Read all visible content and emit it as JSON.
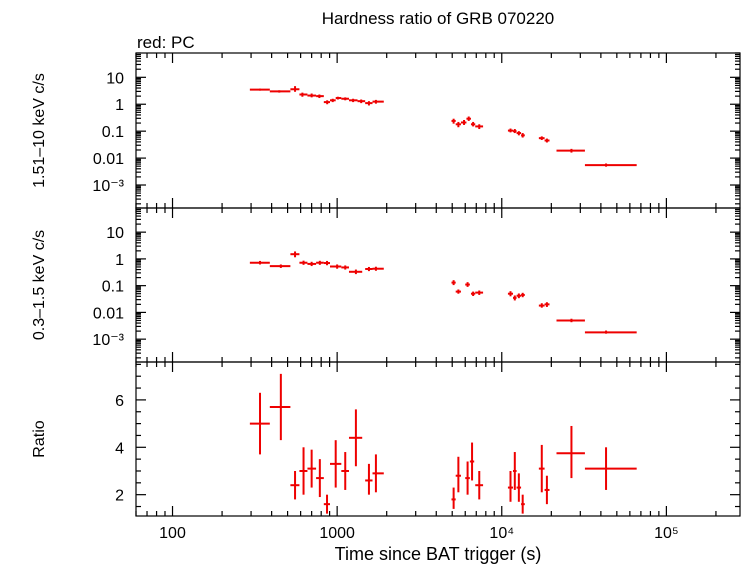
{
  "chart_data": {
    "type": "scatter",
    "title": "Hardness ratio of GRB 070220",
    "annotation": "red: PC",
    "xlabel": "Time since BAT trigger (s)",
    "x_scale": "log",
    "xlim": [
      60,
      280000
    ],
    "x_tick_labels": [
      "100",
      "1000",
      "10⁴",
      "10⁵"
    ],
    "x_tick_values": [
      100,
      1000,
      10000,
      100000
    ],
    "series_color": "#ee0000",
    "panels": [
      {
        "ylabel": "1.51–10 keV c/s",
        "y_scale": "log",
        "ylim": [
          0.00014,
          80
        ],
        "y_tick_labels": [
          "10",
          "1",
          "0.1",
          "0.01",
          "10⁻³"
        ],
        "y_tick_values": [
          10,
          1,
          0.1,
          0.01,
          0.001
        ],
        "points": [
          {
            "x": 340,
            "xlo": 295,
            "xhi": 390,
            "y": 3.5,
            "ylo": 3.2,
            "yhi": 3.8
          },
          {
            "x": 445,
            "xlo": 390,
            "xhi": 520,
            "y": 3.0,
            "ylo": 2.7,
            "yhi": 3.3
          },
          {
            "x": 555,
            "xlo": 520,
            "xhi": 590,
            "y": 3.6,
            "ylo": 2.9,
            "yhi": 4.7
          },
          {
            "x": 615,
            "xlo": 590,
            "xhi": 660,
            "y": 2.3,
            "ylo": 1.9,
            "yhi": 2.7
          },
          {
            "x": 700,
            "xlo": 660,
            "xhi": 745,
            "y": 2.1,
            "ylo": 1.8,
            "yhi": 2.5
          },
          {
            "x": 780,
            "xlo": 745,
            "xhi": 830,
            "y": 2.0,
            "ylo": 1.7,
            "yhi": 2.3
          },
          {
            "x": 870,
            "xlo": 830,
            "xhi": 905,
            "y": 1.2,
            "ylo": 1.0,
            "yhi": 1.4
          },
          {
            "x": 940,
            "xlo": 905,
            "xhi": 980,
            "y": 1.4,
            "ylo": 1.2,
            "yhi": 1.6
          },
          {
            "x": 1010,
            "xlo": 980,
            "xhi": 1060,
            "y": 1.7,
            "ylo": 1.5,
            "yhi": 1.9
          },
          {
            "x": 1120,
            "xlo": 1060,
            "xhi": 1180,
            "y": 1.6,
            "ylo": 1.4,
            "yhi": 1.8
          },
          {
            "x": 1250,
            "xlo": 1180,
            "xhi": 1330,
            "y": 1.4,
            "ylo": 1.2,
            "yhi": 1.6
          },
          {
            "x": 1400,
            "xlo": 1330,
            "xhi": 1480,
            "y": 1.3,
            "ylo": 1.1,
            "yhi": 1.5
          },
          {
            "x": 1560,
            "xlo": 1480,
            "xhi": 1640,
            "y": 1.1,
            "ylo": 0.9,
            "yhi": 1.3
          },
          {
            "x": 1720,
            "xlo": 1640,
            "xhi": 1920,
            "y": 1.25,
            "ylo": 1.05,
            "yhi": 1.45
          },
          {
            "x": 5100,
            "xlo": 4950,
            "xhi": 5250,
            "y": 0.24,
            "ylo": 0.19,
            "yhi": 0.29
          },
          {
            "x": 5450,
            "xlo": 5250,
            "xhi": 5650,
            "y": 0.18,
            "ylo": 0.14,
            "yhi": 0.22
          },
          {
            "x": 5900,
            "xlo": 5650,
            "xhi": 6100,
            "y": 0.21,
            "ylo": 0.17,
            "yhi": 0.26
          },
          {
            "x": 6300,
            "xlo": 6100,
            "xhi": 6500,
            "y": 0.29,
            "ylo": 0.24,
            "yhi": 0.35
          },
          {
            "x": 6700,
            "xlo": 6500,
            "xhi": 6900,
            "y": 0.18,
            "ylo": 0.15,
            "yhi": 0.22
          },
          {
            "x": 7300,
            "xlo": 6900,
            "xhi": 7700,
            "y": 0.15,
            "ylo": 0.12,
            "yhi": 0.18
          },
          {
            "x": 11300,
            "xlo": 10900,
            "xhi": 11700,
            "y": 0.105,
            "ylo": 0.09,
            "yhi": 0.125
          },
          {
            "x": 12000,
            "xlo": 11700,
            "xhi": 12300,
            "y": 0.1,
            "ylo": 0.085,
            "yhi": 0.12
          },
          {
            "x": 12700,
            "xlo": 12300,
            "xhi": 13100,
            "y": 0.085,
            "ylo": 0.07,
            "yhi": 0.1
          },
          {
            "x": 13400,
            "xlo": 13100,
            "xhi": 13800,
            "y": 0.07,
            "ylo": 0.058,
            "yhi": 0.085
          },
          {
            "x": 17500,
            "xlo": 16800,
            "xhi": 18200,
            "y": 0.055,
            "ylo": 0.047,
            "yhi": 0.064
          },
          {
            "x": 18800,
            "xlo": 18200,
            "xhi": 19500,
            "y": 0.045,
            "ylo": 0.038,
            "yhi": 0.053
          },
          {
            "x": 26500,
            "xlo": 21500,
            "xhi": 32000,
            "y": 0.019,
            "ylo": 0.016,
            "yhi": 0.022
          },
          {
            "x": 43000,
            "xlo": 32000,
            "xhi": 66000,
            "y": 0.0055,
            "ylo": 0.0048,
            "yhi": 0.0063
          }
        ]
      },
      {
        "ylabel": "0.3–1.5 keV c/s",
        "y_scale": "log",
        "ylim": [
          0.00014,
          80
        ],
        "y_tick_labels": [
          "10",
          "1",
          "0.1",
          "0.01",
          "10⁻³"
        ],
        "y_tick_values": [
          10,
          1,
          0.1,
          0.01,
          0.001
        ],
        "points": [
          {
            "x": 340,
            "xlo": 295,
            "xhi": 390,
            "y": 0.72,
            "ylo": 0.62,
            "yhi": 0.84
          },
          {
            "x": 455,
            "xlo": 390,
            "xhi": 520,
            "y": 0.54,
            "ylo": 0.46,
            "yhi": 0.62
          },
          {
            "x": 555,
            "xlo": 520,
            "xhi": 590,
            "y": 1.5,
            "ylo": 1.15,
            "yhi": 1.9
          },
          {
            "x": 625,
            "xlo": 590,
            "xhi": 660,
            "y": 0.72,
            "ylo": 0.6,
            "yhi": 0.86
          },
          {
            "x": 700,
            "xlo": 660,
            "xhi": 745,
            "y": 0.65,
            "ylo": 0.54,
            "yhi": 0.78
          },
          {
            "x": 785,
            "xlo": 745,
            "xhi": 830,
            "y": 0.72,
            "ylo": 0.6,
            "yhi": 0.85
          },
          {
            "x": 868,
            "xlo": 830,
            "xhi": 905,
            "y": 0.7,
            "ylo": 0.58,
            "yhi": 0.84
          },
          {
            "x": 1000,
            "xlo": 905,
            "xhi": 1060,
            "y": 0.52,
            "ylo": 0.43,
            "yhi": 0.62
          },
          {
            "x": 1120,
            "xlo": 1060,
            "xhi": 1180,
            "y": 0.48,
            "ylo": 0.4,
            "yhi": 0.57
          },
          {
            "x": 1300,
            "xlo": 1180,
            "xhi": 1420,
            "y": 0.33,
            "ylo": 0.27,
            "yhi": 0.4
          },
          {
            "x": 1560,
            "xlo": 1480,
            "xhi": 1640,
            "y": 0.42,
            "ylo": 0.35,
            "yhi": 0.5
          },
          {
            "x": 1720,
            "xlo": 1640,
            "xhi": 1920,
            "y": 0.43,
            "ylo": 0.36,
            "yhi": 0.51
          },
          {
            "x": 5100,
            "xlo": 4950,
            "xhi": 5250,
            "y": 0.13,
            "ylo": 0.105,
            "yhi": 0.16
          },
          {
            "x": 5450,
            "xlo": 5250,
            "xhi": 5650,
            "y": 0.06,
            "ylo": 0.05,
            "yhi": 0.072
          },
          {
            "x": 6200,
            "xlo": 6000,
            "xhi": 6400,
            "y": 0.11,
            "ylo": 0.09,
            "yhi": 0.135
          },
          {
            "x": 6700,
            "xlo": 6500,
            "xhi": 6900,
            "y": 0.05,
            "ylo": 0.041,
            "yhi": 0.06
          },
          {
            "x": 7300,
            "xlo": 6900,
            "xhi": 7700,
            "y": 0.055,
            "ylo": 0.045,
            "yhi": 0.066
          },
          {
            "x": 11300,
            "xlo": 10900,
            "xhi": 11700,
            "y": 0.05,
            "ylo": 0.04,
            "yhi": 0.062
          },
          {
            "x": 12000,
            "xlo": 11700,
            "xhi": 12300,
            "y": 0.035,
            "ylo": 0.028,
            "yhi": 0.043
          },
          {
            "x": 12700,
            "xlo": 12300,
            "xhi": 13100,
            "y": 0.042,
            "ylo": 0.034,
            "yhi": 0.051
          },
          {
            "x": 13400,
            "xlo": 13100,
            "xhi": 13800,
            "y": 0.045,
            "ylo": 0.037,
            "yhi": 0.054
          },
          {
            "x": 17500,
            "xlo": 16800,
            "xhi": 18200,
            "y": 0.018,
            "ylo": 0.015,
            "yhi": 0.022
          },
          {
            "x": 18800,
            "xlo": 18200,
            "xhi": 19500,
            "y": 0.02,
            "ylo": 0.016,
            "yhi": 0.024
          },
          {
            "x": 26500,
            "xlo": 21500,
            "xhi": 32000,
            "y": 0.005,
            "ylo": 0.0043,
            "yhi": 0.0058
          },
          {
            "x": 43000,
            "xlo": 32000,
            "xhi": 66000,
            "y": 0.0018,
            "ylo": 0.0016,
            "yhi": 0.0021
          }
        ]
      },
      {
        "ylabel": "Ratio",
        "y_scale": "linear",
        "ylim": [
          1.1,
          7.6
        ],
        "y_tick_labels": [
          "2",
          "4",
          "6"
        ],
        "y_tick_values": [
          2,
          4,
          6
        ],
        "points": [
          {
            "x": 340,
            "xlo": 295,
            "xhi": 390,
            "y": 5.0,
            "ylo": 3.7,
            "yhi": 6.3
          },
          {
            "x": 455,
            "xlo": 390,
            "xhi": 520,
            "y": 5.7,
            "ylo": 4.3,
            "yhi": 7.1
          },
          {
            "x": 555,
            "xlo": 520,
            "xhi": 590,
            "y": 2.4,
            "ylo": 1.8,
            "yhi": 3.0
          },
          {
            "x": 625,
            "xlo": 590,
            "xhi": 660,
            "y": 3.0,
            "ylo": 2.0,
            "yhi": 4.0
          },
          {
            "x": 700,
            "xlo": 660,
            "xhi": 745,
            "y": 3.1,
            "ylo": 2.3,
            "yhi": 3.9
          },
          {
            "x": 785,
            "xlo": 745,
            "xhi": 830,
            "y": 2.7,
            "ylo": 1.9,
            "yhi": 3.5
          },
          {
            "x": 868,
            "xlo": 830,
            "xhi": 905,
            "y": 1.6,
            "ylo": 1.2,
            "yhi": 2.0
          },
          {
            "x": 980,
            "xlo": 905,
            "xhi": 1060,
            "y": 3.3,
            "ylo": 2.3,
            "yhi": 4.3
          },
          {
            "x": 1120,
            "xlo": 1060,
            "xhi": 1180,
            "y": 3.0,
            "ylo": 2.2,
            "yhi": 3.8
          },
          {
            "x": 1300,
            "xlo": 1180,
            "xhi": 1420,
            "y": 4.4,
            "ylo": 3.2,
            "yhi": 5.6
          },
          {
            "x": 1560,
            "xlo": 1480,
            "xhi": 1640,
            "y": 2.6,
            "ylo": 2.0,
            "yhi": 3.3
          },
          {
            "x": 1720,
            "xlo": 1640,
            "xhi": 1920,
            "y": 2.9,
            "ylo": 2.1,
            "yhi": 3.7
          },
          {
            "x": 5100,
            "xlo": 4950,
            "xhi": 5250,
            "y": 1.8,
            "ylo": 1.4,
            "yhi": 2.3
          },
          {
            "x": 5450,
            "xlo": 5250,
            "xhi": 5650,
            "y": 2.8,
            "ylo": 2.1,
            "yhi": 3.6
          },
          {
            "x": 6200,
            "xlo": 6000,
            "xhi": 6400,
            "y": 2.7,
            "ylo": 2.0,
            "yhi": 3.4
          },
          {
            "x": 6600,
            "xlo": 6400,
            "xhi": 6800,
            "y": 3.4,
            "ylo": 2.6,
            "yhi": 4.2
          },
          {
            "x": 7300,
            "xlo": 6900,
            "xhi": 7700,
            "y": 2.4,
            "ylo": 1.8,
            "yhi": 3.0
          },
          {
            "x": 11300,
            "xlo": 10900,
            "xhi": 11700,
            "y": 2.3,
            "ylo": 1.7,
            "yhi": 3.0
          },
          {
            "x": 12000,
            "xlo": 11700,
            "xhi": 12300,
            "y": 3.0,
            "ylo": 2.2,
            "yhi": 3.8
          },
          {
            "x": 12700,
            "xlo": 12300,
            "xhi": 13100,
            "y": 2.3,
            "ylo": 1.7,
            "yhi": 2.9
          },
          {
            "x": 13400,
            "xlo": 13100,
            "xhi": 13800,
            "y": 1.6,
            "ylo": 1.2,
            "yhi": 2.0
          },
          {
            "x": 17500,
            "xlo": 16800,
            "xhi": 18200,
            "y": 3.1,
            "ylo": 2.1,
            "yhi": 4.1
          },
          {
            "x": 18800,
            "xlo": 18200,
            "xhi": 19500,
            "y": 2.2,
            "ylo": 1.6,
            "yhi": 2.8
          },
          {
            "x": 26500,
            "xlo": 21500,
            "xhi": 32000,
            "y": 3.75,
            "ylo": 2.7,
            "yhi": 4.9
          },
          {
            "x": 43000,
            "xlo": 32000,
            "xhi": 66000,
            "y": 3.1,
            "ylo": 2.2,
            "yhi": 4.0
          }
        ]
      }
    ]
  }
}
